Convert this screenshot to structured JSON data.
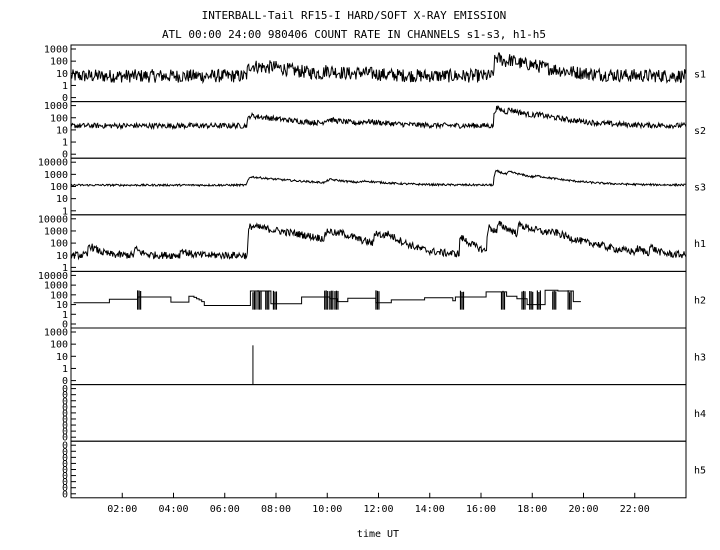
{
  "chart_data": {
    "type": "line",
    "title": "INTERBALL-Tail RF15-I HARD/SOFT X-RAY EMISSION",
    "subtitle": "ATL 00:00 24:00 980406  COUNT RATE IN CHANNELS s1-s3, h1-h5",
    "xlabel": "time UT",
    "xlim": [
      0,
      24
    ],
    "x_ticks": [
      "02:00",
      "04:00",
      "06:00",
      "08:00",
      "10:00",
      "12:00",
      "14:00",
      "16:00",
      "18:00",
      "20:00",
      "22:00"
    ],
    "y_scale": "log",
    "panels": [
      {
        "name": "s1",
        "y_ticks": [
          "1000",
          "100",
          "10",
          "1",
          "0"
        ],
        "baseline": 6,
        "noise": 0.55,
        "events": [
          [
            7.0,
            40,
            0.15,
            1.1
          ],
          [
            7.8,
            12,
            0.1,
            0.6
          ],
          [
            10.0,
            10,
            0.2,
            0.6
          ],
          [
            11.3,
            4,
            0.3,
            0.8
          ],
          [
            16.6,
            200,
            0.12,
            0.45
          ],
          [
            17.1,
            60,
            0.1,
            0.9
          ],
          [
            17.9,
            15,
            0.2,
            1.0
          ]
        ]
      },
      {
        "name": "s2",
        "y_ticks": [
          "1000",
          "100",
          "10",
          "1",
          "0"
        ],
        "baseline": 22,
        "noise": 0.22,
        "events": [
          [
            7.0,
            130,
            0.15,
            1.3
          ],
          [
            10.0,
            40,
            0.2,
            0.8
          ],
          [
            11.5,
            20,
            0.3,
            1.0
          ],
          [
            16.6,
            600,
            0.12,
            0.5
          ],
          [
            17.1,
            250,
            0.1,
            1.0
          ],
          [
            18.2,
            60,
            0.2,
            1.1
          ]
        ]
      },
      {
        "name": "s3",
        "y_ticks": [
          "10000",
          "1000",
          "100",
          "10",
          "1"
        ],
        "baseline": 130,
        "noise": 0.08,
        "events": [
          [
            7.0,
            500,
            0.15,
            1.6
          ],
          [
            10.1,
            180,
            0.2,
            0.9
          ],
          [
            11.5,
            80,
            0.3,
            1.0
          ],
          [
            16.6,
            1800,
            0.12,
            0.55
          ],
          [
            17.1,
            800,
            0.1,
            1.1
          ],
          [
            18.2,
            220,
            0.2,
            1.2
          ]
        ]
      },
      {
        "name": "h1",
        "y_ticks": [
          "10000",
          "1000",
          "100",
          "10",
          "1"
        ],
        "baseline": 10,
        "noise": 0.3,
        "events": [
          [
            0.7,
            60,
            0.05,
            0.25
          ],
          [
            2.5,
            25,
            0.05,
            0.2
          ],
          [
            4.3,
            20,
            0.05,
            0.2
          ],
          [
            7.0,
            2500,
            0.1,
            1.2
          ],
          [
            7.4,
            80,
            0.05,
            0.3
          ],
          [
            8.6,
            50,
            0.05,
            0.3
          ],
          [
            10.0,
            900,
            0.1,
            0.5
          ],
          [
            10.5,
            300,
            0.08,
            0.4
          ],
          [
            11.9,
            700,
            0.1,
            0.35
          ],
          [
            12.3,
            400,
            0.08,
            0.35
          ],
          [
            15.2,
            300,
            0.05,
            0.3
          ],
          [
            16.3,
            2000,
            0.08,
            0.35
          ],
          [
            16.7,
            3000,
            0.08,
            0.4
          ],
          [
            17.5,
            2500,
            0.1,
            0.8
          ],
          [
            18.6,
            350,
            0.05,
            0.3
          ],
          [
            18.9,
            200,
            0.05,
            0.3
          ],
          [
            20.4,
            30,
            0.05,
            0.2
          ],
          [
            22.1,
            20,
            0.05,
            0.2
          ],
          [
            22.6,
            40,
            0.05,
            0.2
          ]
        ]
      },
      {
        "name": "h2",
        "y_ticks": [
          "10000",
          "1000",
          "100",
          "10",
          "1",
          "0"
        ],
        "steps": [
          [
            0.1,
            15
          ],
          [
            1.5,
            35
          ],
          [
            2.6,
            60
          ],
          [
            3.9,
            18
          ],
          [
            4.6,
            70
          ],
          [
            4.8,
            55
          ],
          [
            4.9,
            40
          ],
          [
            5.0,
            30
          ],
          [
            5.1,
            20
          ],
          [
            5.2,
            8
          ],
          [
            7.0,
            250
          ],
          [
            7.8,
            12
          ],
          [
            9.0,
            60
          ],
          [
            10.1,
            40
          ],
          [
            10.4,
            20
          ],
          [
            10.8,
            45
          ],
          [
            11.9,
            15
          ],
          [
            12.5,
            30
          ],
          [
            13.8,
            50
          ],
          [
            14.9,
            25
          ],
          [
            15.0,
            60
          ],
          [
            16.2,
            200
          ],
          [
            17.0,
            70
          ],
          [
            17.4,
            40
          ],
          [
            17.8,
            10
          ],
          [
            18.5,
            300
          ],
          [
            19.0,
            250
          ],
          [
            19.6,
            20
          ]
        ],
        "spikes": [
          2.6,
          7.1,
          7.3,
          7.6,
          7.9,
          9.9,
          10.1,
          10.3,
          11.9,
          15.2,
          16.8,
          17.6,
          17.9,
          18.2,
          18.8,
          19.4
        ]
      },
      {
        "name": "h3",
        "y_ticks": [
          "1000",
          "100",
          "10",
          "1",
          "0"
        ],
        "spikes": [
          [
            7.1,
            80
          ]
        ]
      },
      {
        "name": "h4",
        "y_ticks": [
          "0",
          "0",
          "0",
          "0",
          "0",
          "0",
          "0",
          "0",
          "0"
        ]
      },
      {
        "name": "h5",
        "y_ticks": [
          "0",
          "0",
          "0",
          "0",
          "0",
          "0",
          "0",
          "0",
          "0"
        ]
      }
    ]
  }
}
